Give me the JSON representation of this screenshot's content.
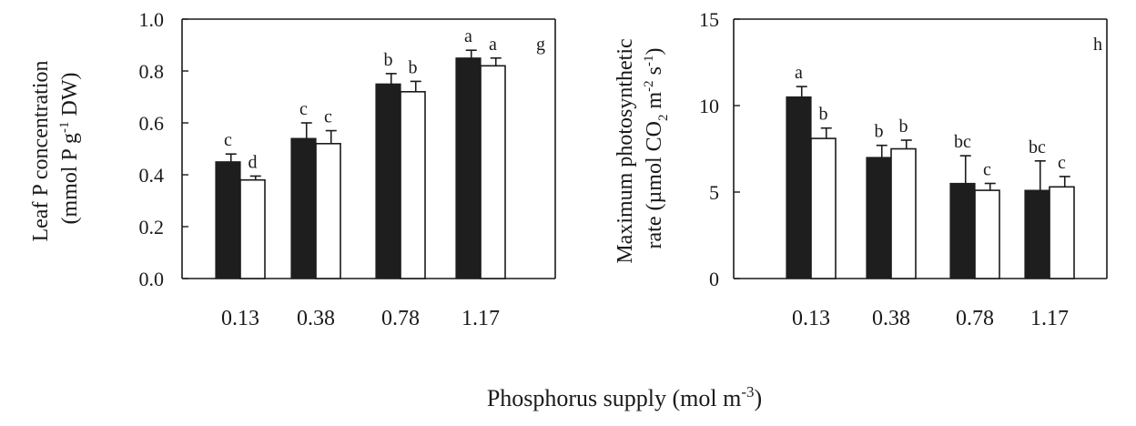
{
  "chart_data": [
    {
      "type": "bar",
      "panel_label": "g",
      "categories": [
        "0.13",
        "0.38",
        "0.78",
        "1.17"
      ],
      "ylabel_lines": [
        "Leaf P concentration",
        "(mmol P g-1 DW)"
      ],
      "ylim": [
        0,
        1.0
      ],
      "yticks": [
        "0.0",
        "0.2",
        "0.4",
        "0.6",
        "0.8",
        "1.0"
      ],
      "ytick_values": [
        0,
        0.2,
        0.4,
        0.6,
        0.8,
        1.0
      ],
      "series": [
        {
          "values": [
            0.45,
            0.54,
            0.75,
            0.85
          ],
          "errors": [
            0.03,
            0.06,
            0.04,
            0.03
          ],
          "letters": [
            "c",
            "c",
            "b",
            "a"
          ],
          "color": "#1e1e1e"
        },
        {
          "values": [
            0.38,
            0.52,
            0.72,
            0.82
          ],
          "errors": [
            0.015,
            0.05,
            0.04,
            0.03
          ],
          "letters": [
            "d",
            "c",
            "b",
            "a"
          ],
          "color": "#ffffff"
        }
      ]
    },
    {
      "type": "bar",
      "panel_label": "h",
      "categories": [
        "0.13",
        "0.38",
        "0.78",
        "1.17"
      ],
      "ylabel_lines": [
        "Maximum photosynthetic",
        "rate (µmol CO2 m-2 s-1)"
      ],
      "ylim": [
        0,
        15
      ],
      "yticks": [
        "0",
        "5",
        "10",
        "15"
      ],
      "ytick_values": [
        0,
        5,
        10,
        15
      ],
      "series": [
        {
          "values": [
            10.5,
            7.0,
            5.5,
            5.1
          ],
          "errors": [
            0.6,
            0.7,
            1.6,
            1.7
          ],
          "letters": [
            "a",
            "b",
            "bc",
            "bc"
          ],
          "color": "#1e1e1e"
        },
        {
          "values": [
            8.1,
            7.5,
            5.1,
            5.3
          ],
          "errors": [
            0.6,
            0.5,
            0.4,
            0.6
          ],
          "letters": [
            "b",
            "b",
            "c",
            "c"
          ],
          "color": "#ffffff"
        }
      ]
    }
  ],
  "shared_xlabel": "Phosphorus supply (mol m-3)"
}
